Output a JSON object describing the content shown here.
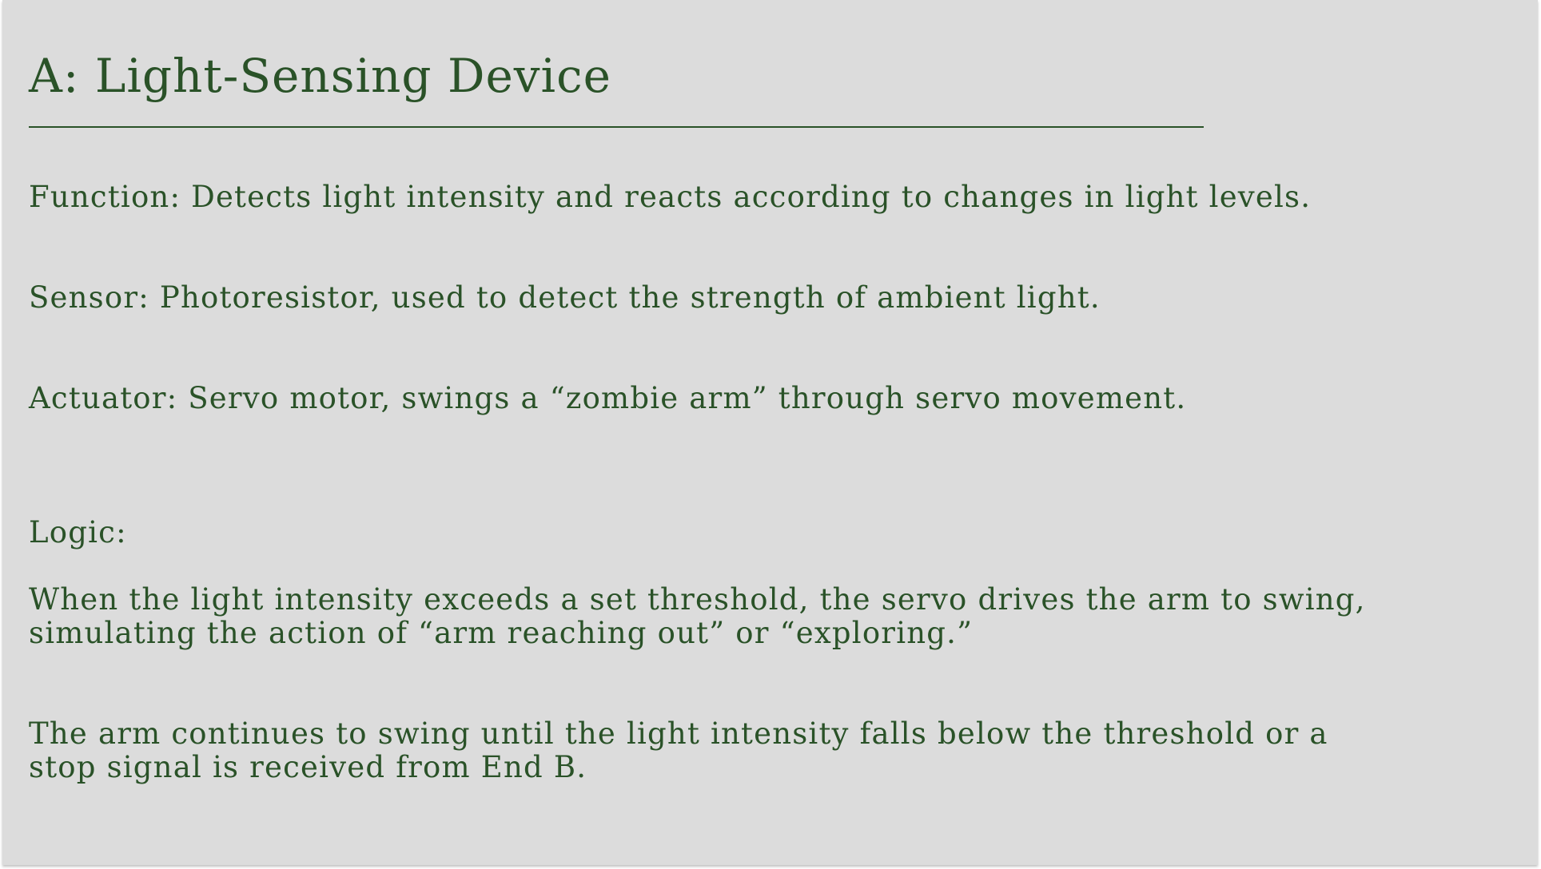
{
  "slide": {
    "title": "A: Light-Sensing Device",
    "paragraphs": {
      "function": "Function: Detects light intensity and reacts according to changes in light levels.",
      "sensor": "Sensor: Photoresistor, used to detect the strength of ambient light.",
      "actuator": "Actuator: Servo motor, swings a “zombie arm” through servo movement.",
      "logic_label": "Logic:",
      "logic_1": "When the light intensity exceeds a set threshold, the servo drives the arm to swing, simulating the action of “arm reaching out” or “exploring.”",
      "logic_2": "The arm continues to swing until the light intensity falls below the threshold or a stop signal is received from End B."
    }
  },
  "colors": {
    "background": "#dcdcdc",
    "text": "#2a5228"
  }
}
